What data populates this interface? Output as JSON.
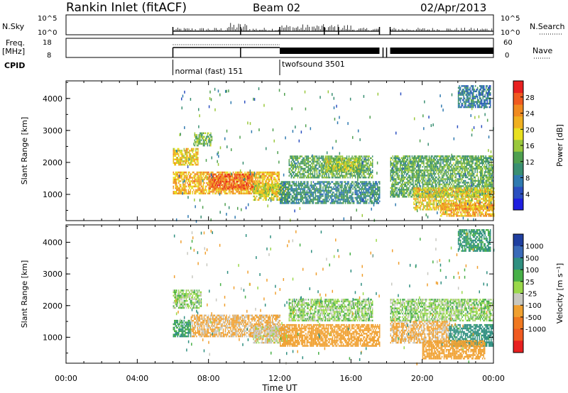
{
  "header": {
    "station": "Rankin Inlet (fitACF)",
    "beam": "Beam 02",
    "date": "02/Apr/2013"
  },
  "strips": {
    "nsky": {
      "label": "N.Sky",
      "tick_top": "10^5",
      "tick_bottom": "10^0",
      "right_tick_top": "10^5",
      "right_tick_bottom": "10^0",
      "right_label": "N.Search"
    },
    "freq": {
      "label_line1": "Freq.",
      "label_line2": "[MHz]",
      "tick_top": "18",
      "tick_bottom": "8",
      "right_tick_top": "60",
      "right_tick_bottom": "0",
      "right_label": "Nave"
    },
    "cpid": {
      "label": "CPID",
      "modes": [
        {
          "name": "normal (fast) 151",
          "start_hour": 6.0
        },
        {
          "name": "twofsound 3501",
          "start_hour": 12.0
        }
      ]
    }
  },
  "x_axis": {
    "label": "Time UT",
    "ticks": [
      "00:00",
      "04:00",
      "08:00",
      "12:00",
      "16:00",
      "20:00",
      "00:00"
    ],
    "range_hours": [
      0,
      24
    ]
  },
  "chart_data": [
    {
      "type": "heatmap",
      "name": "power",
      "xlabel": "Time UT",
      "ylabel": "Slant Range [km]",
      "xlim": [
        0,
        24
      ],
      "ylim": [
        180,
        4550
      ],
      "yticks": [
        1000,
        2000,
        3000,
        4000
      ],
      "colorbar": {
        "label": "Power [dB]",
        "ticks": [
          4,
          8,
          12,
          16,
          20,
          24,
          28
        ],
        "range": [
          0,
          32
        ],
        "colors": [
          "#1f1fe0",
          "#2b4fc0",
          "#2f7ab0",
          "#3a8f72",
          "#4fa050",
          "#9ac83c",
          "#e8e020",
          "#f0b020",
          "#f08a20",
          "#f05a20",
          "#e82020"
        ]
      },
      "regions": [
        {
          "t0": 6.0,
          "t1": 7.4,
          "r0": 1900,
          "r1": 2450,
          "value": 20
        },
        {
          "t0": 7.2,
          "t1": 8.2,
          "r0": 2500,
          "r1": 2900,
          "value": 14
        },
        {
          "t0": 6.0,
          "t1": 12.0,
          "r0": 1000,
          "r1": 1700,
          "value": 22
        },
        {
          "t0": 8.0,
          "t1": 10.5,
          "r0": 1150,
          "r1": 1600,
          "value": 27
        },
        {
          "t0": 10.5,
          "t1": 12.5,
          "r0": 800,
          "r1": 1300,
          "value": 18
        },
        {
          "t0": 12.0,
          "t1": 17.6,
          "r0": 700,
          "r1": 1400,
          "value": 10
        },
        {
          "t0": 12.5,
          "t1": 17.2,
          "r0": 1500,
          "r1": 2200,
          "value": 13
        },
        {
          "t0": 14.5,
          "t1": 16.5,
          "r0": 1700,
          "r1": 2100,
          "value": 17
        },
        {
          "t0": 18.2,
          "t1": 24.0,
          "r0": 900,
          "r1": 2200,
          "value": 13
        },
        {
          "t0": 19.5,
          "t1": 24.0,
          "r0": 500,
          "r1": 1200,
          "value": 20
        },
        {
          "t0": 21.0,
          "t1": 24.0,
          "r0": 300,
          "r1": 700,
          "value": 23
        },
        {
          "t0": 22.0,
          "t1": 23.8,
          "r0": 3700,
          "r1": 4400,
          "value": 8
        }
      ]
    },
    {
      "type": "heatmap",
      "name": "velocity",
      "xlabel": "Time UT",
      "ylabel": "Slant Range [km]",
      "xlim": [
        0,
        24
      ],
      "ylim": [
        180,
        4550
      ],
      "yticks": [
        1000,
        2000,
        3000,
        4000
      ],
      "colorbar": {
        "label": "Velocity [m s⁻¹]",
        "ticks": [
          1000,
          500,
          100,
          25,
          -25,
          -100,
          -500,
          -1000
        ],
        "bands": [
          "#1f3fa0",
          "#3a6ab8",
          "#2f8f80",
          "#48b048",
          "#9ad84a",
          "#c8c8c0",
          "#f0a030",
          "#f07820",
          "#f05a20",
          "#e82020"
        ]
      },
      "regions": [
        {
          "t0": 6.0,
          "t1": 7.6,
          "r0": 1900,
          "r1": 2500,
          "value": 0
        },
        {
          "t0": 6.0,
          "t1": 7.0,
          "r0": 1000,
          "r1": 1500,
          "value": 100
        },
        {
          "t0": 7.0,
          "t1": 12.0,
          "r0": 1000,
          "r1": 1700,
          "value": -120
        },
        {
          "t0": 10.5,
          "t1": 12.5,
          "r0": 800,
          "r1": 1300,
          "value": -60
        },
        {
          "t0": 12.0,
          "t1": 17.6,
          "r0": 700,
          "r1": 1400,
          "value": -200
        },
        {
          "t0": 12.5,
          "t1": 17.2,
          "r0": 1500,
          "r1": 2200,
          "value": 0
        },
        {
          "t0": 18.2,
          "t1": 24.0,
          "r0": 1500,
          "r1": 2200,
          "value": 0
        },
        {
          "t0": 18.2,
          "t1": 21.5,
          "r0": 800,
          "r1": 1500,
          "value": -120
        },
        {
          "t0": 21.5,
          "t1": 24.0,
          "r0": 700,
          "r1": 1400,
          "value": 150
        },
        {
          "t0": 20.0,
          "t1": 23.5,
          "r0": 300,
          "r1": 900,
          "value": -300
        },
        {
          "t0": 22.0,
          "t1": 23.8,
          "r0": 3700,
          "r1": 4400,
          "value": 120
        }
      ]
    }
  ]
}
